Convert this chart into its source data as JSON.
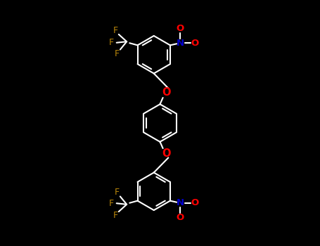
{
  "bg": "#000000",
  "wc": "#ffffff",
  "FC": "#b8860b",
  "OC": "#ff0000",
  "NC": "#0000cd",
  "lw": 1.5,
  "dlw": 2.8,
  "fs": 8.5,
  "fig_w": 4.55,
  "fig_h": 3.5,
  "dpi": 100,
  "xlim": [
    -2.8,
    2.8
  ],
  "ylim": [
    -3.4,
    3.4
  ]
}
